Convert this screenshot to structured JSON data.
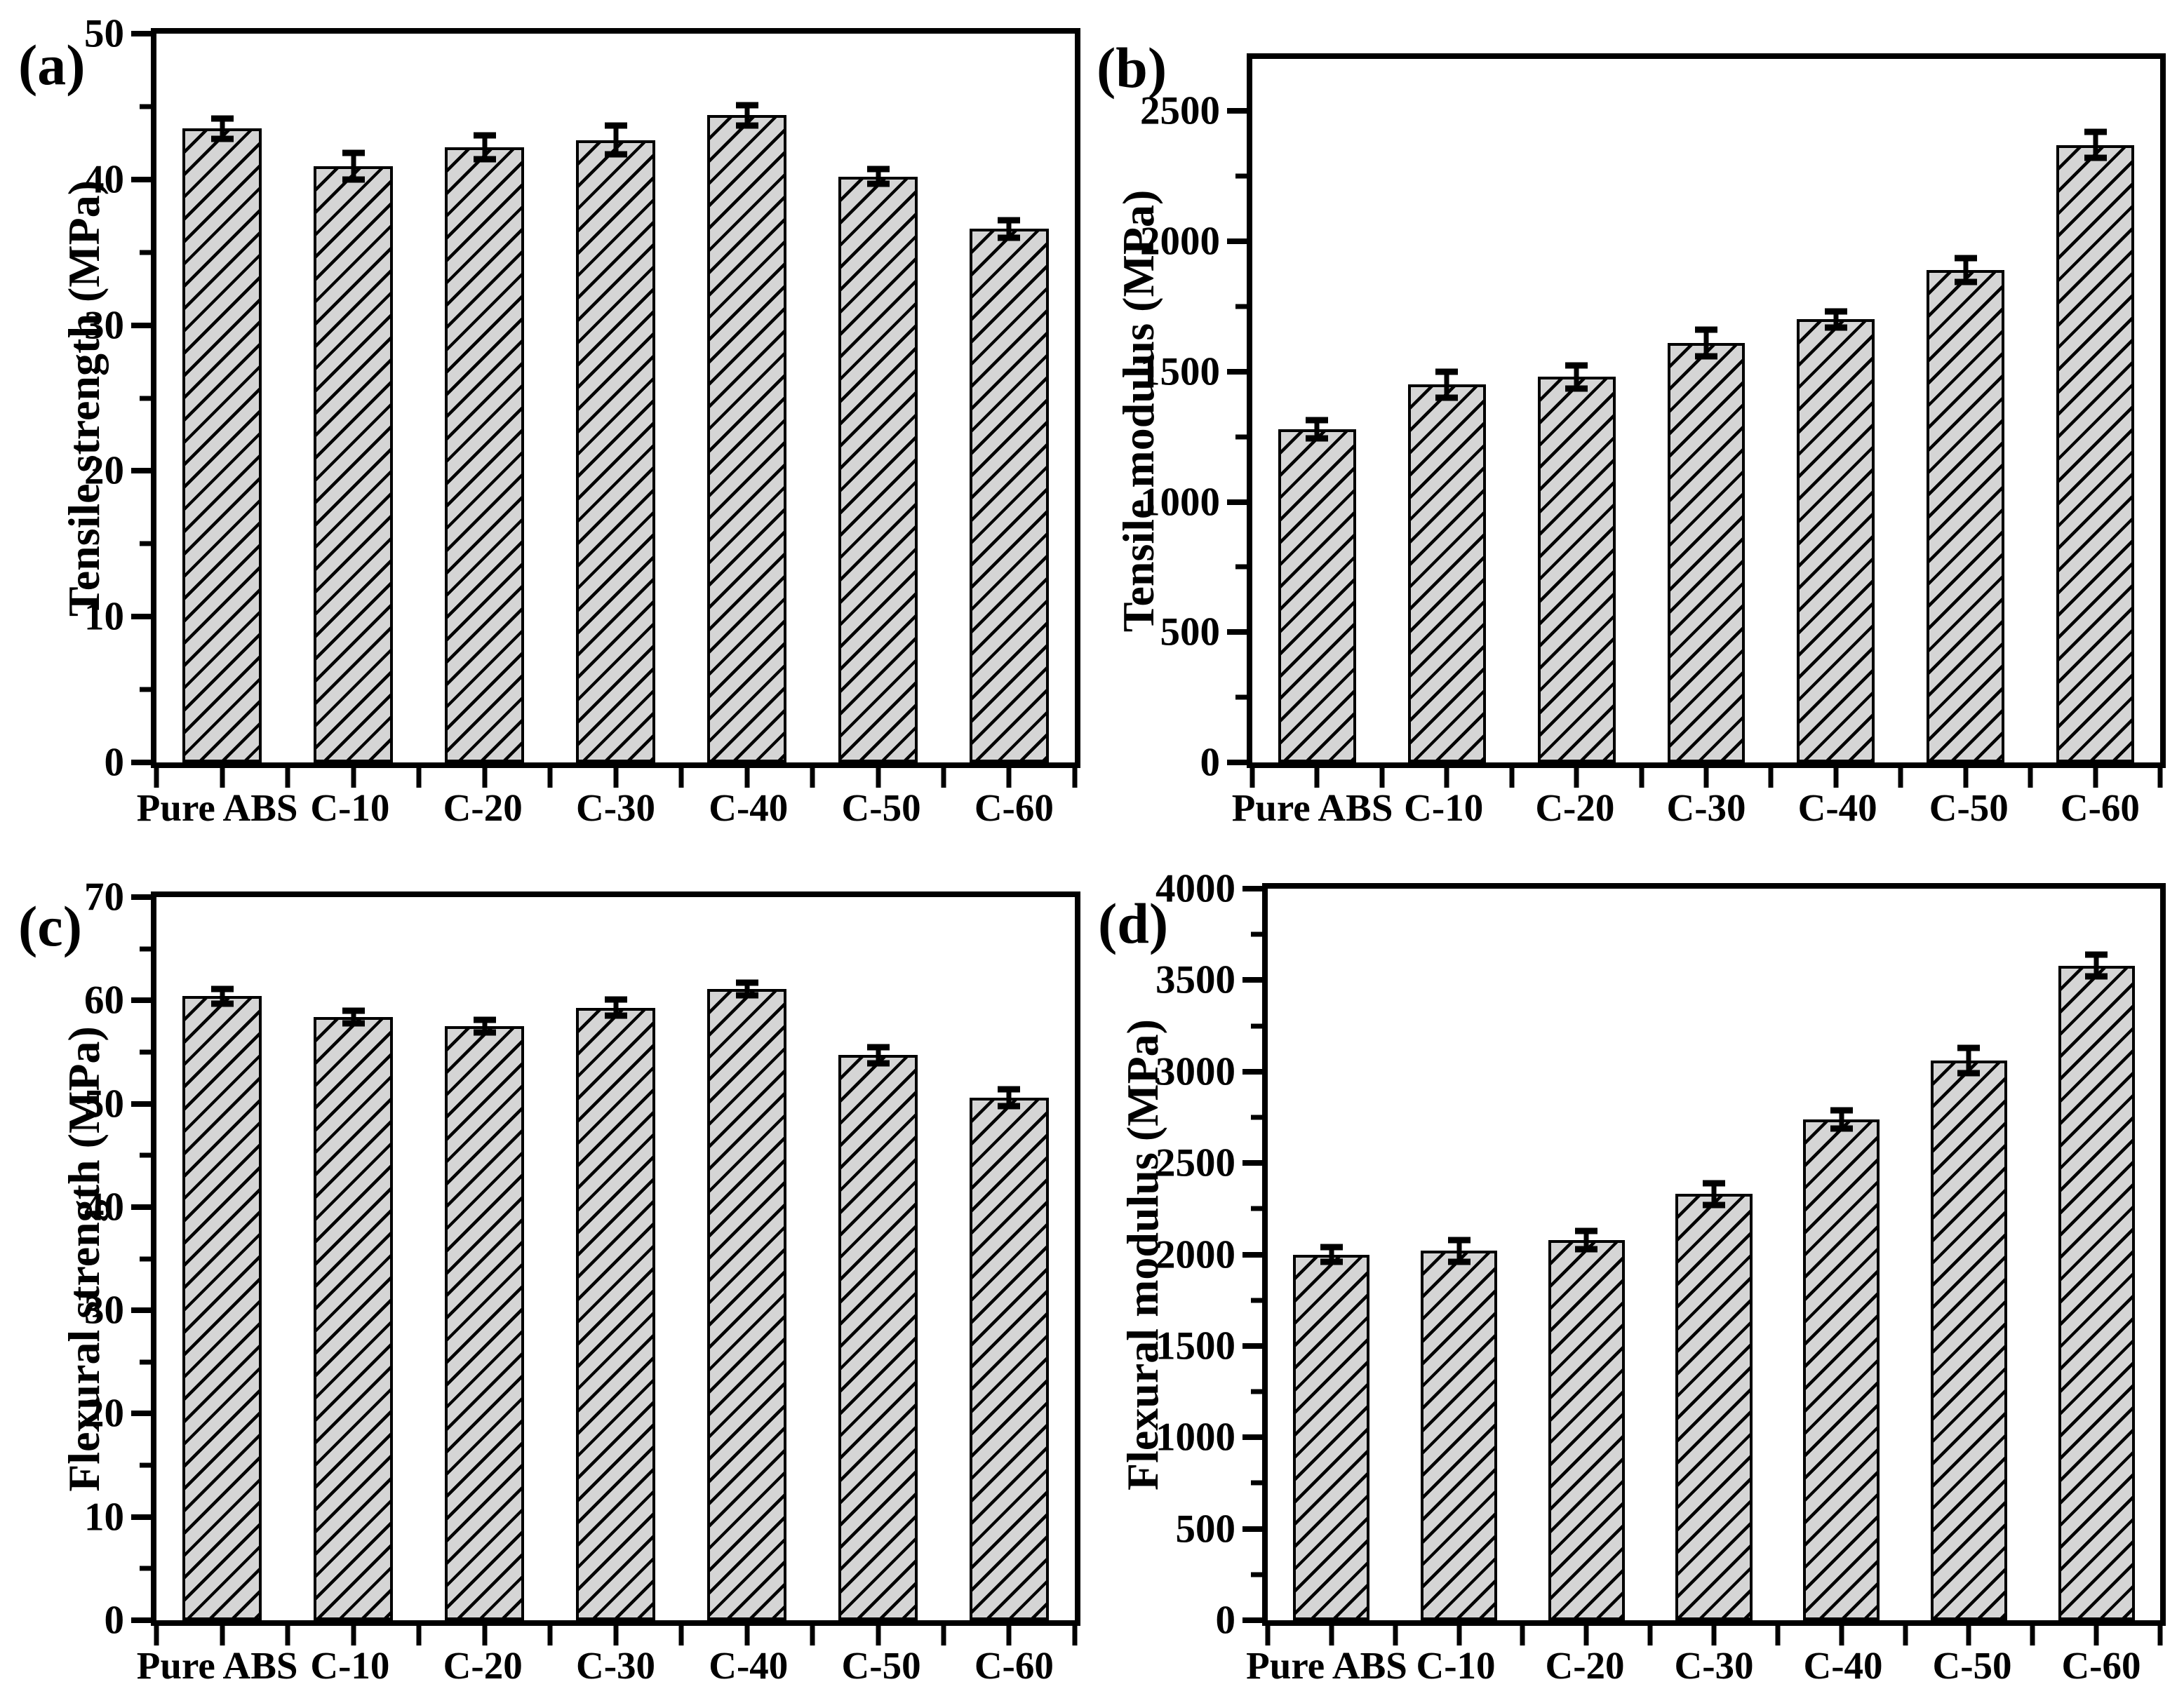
{
  "figure": {
    "background": "#ffffff",
    "text_color": "#000000",
    "bar_fill": "#d5d5d5",
    "bar_edge": "#000000",
    "hatch_style": "forward-diagonal"
  },
  "chart_data": [
    {
      "panel": "(a)",
      "type": "bar",
      "ylabel": "Tensile strength (MPa)",
      "xlabel": "",
      "categories": [
        "Pure ABS",
        "C-10",
        "C-20",
        "C-30",
        "C-40",
        "C-50",
        "C-60"
      ],
      "values": [
        43.5,
        40.9,
        42.2,
        42.7,
        44.4,
        40.2,
        36.6
      ],
      "errors": [
        0.7,
        0.9,
        0.8,
        1.0,
        0.7,
        0.5,
        0.6
      ],
      "ylim": [
        0,
        50
      ],
      "ytick_step": 10,
      "yminor_step": 5,
      "grid": false,
      "legend": null
    },
    {
      "panel": "(b)",
      "type": "bar",
      "ylabel": "Tensile modulus (MPa)",
      "xlabel": "",
      "categories": [
        "Pure ABS",
        "C-10",
        "C-20",
        "C-30",
        "C-40",
        "C-50",
        "C-60"
      ],
      "values": [
        1280,
        1450,
        1480,
        1610,
        1700,
        1890,
        2370
      ],
      "errors": [
        35,
        50,
        45,
        50,
        30,
        45,
        50
      ],
      "ylim": [
        0,
        2700
      ],
      "ytick_step": 500,
      "yminor_step": 250,
      "grid": false,
      "legend": null
    },
    {
      "panel": "(c)",
      "type": "bar",
      "ylabel": "Flexural strength (MPa)",
      "xlabel": "",
      "categories": [
        "Pure ABS",
        "C-10",
        "C-20",
        "C-30",
        "C-40",
        "C-50",
        "C-60"
      ],
      "values": [
        60.4,
        58.4,
        57.5,
        59.3,
        61.1,
        54.7,
        50.6
      ],
      "errors": [
        0.7,
        0.6,
        0.6,
        0.8,
        0.6,
        0.8,
        0.8
      ],
      "ylim": [
        0,
        70
      ],
      "ytick_step": 10,
      "yminor_step": 5,
      "grid": false,
      "legend": null
    },
    {
      "panel": "(d)",
      "type": "bar",
      "ylabel": "Flexural modulus (MPa)",
      "xlabel": "",
      "categories": [
        "Pure ABS",
        "C-10",
        "C-20",
        "C-30",
        "C-40",
        "C-50",
        "C-60"
      ],
      "values": [
        2000,
        2020,
        2080,
        2330,
        2740,
        3060,
        3580
      ],
      "errors": [
        40,
        60,
        50,
        60,
        50,
        70,
        60
      ],
      "ylim": [
        0,
        4000
      ],
      "ytick_step": 500,
      "yminor_step": 250,
      "grid": false,
      "legend": null
    }
  ]
}
